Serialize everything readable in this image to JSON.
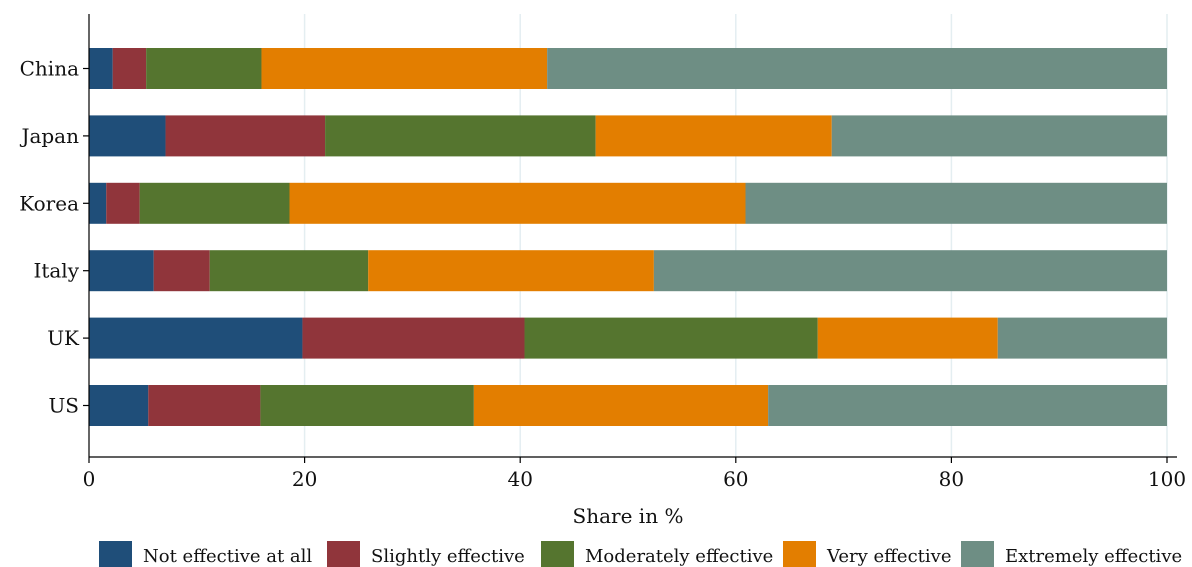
{
  "chart_data": {
    "type": "bar",
    "orientation": "horizontal",
    "stacked": true,
    "categories": [
      "China",
      "Japan",
      "Korea",
      "Italy",
      "UK",
      "US"
    ],
    "series": [
      {
        "name": "Not effective at all",
        "color": "#1f4e79",
        "values": [
          2.2,
          7.1,
          1.6,
          6.0,
          19.8,
          5.5
        ]
      },
      {
        "name": "Slightly effective",
        "color": "#90353b",
        "values": [
          3.1,
          14.8,
          3.1,
          5.2,
          20.6,
          10.4
        ]
      },
      {
        "name": "Moderately effective",
        "color": "#55752f",
        "values": [
          10.7,
          25.1,
          13.9,
          14.7,
          27.2,
          19.8
        ]
      },
      {
        "name": "Very effective",
        "color": "#e37e00",
        "values": [
          26.5,
          21.9,
          42.3,
          26.5,
          16.7,
          27.3
        ]
      },
      {
        "name": "Extremely effective",
        "color": "#6e8e84",
        "values": [
          57.5,
          31.1,
          39.1,
          47.6,
          15.7,
          37.0
        ]
      }
    ],
    "xlabel": "Share in %",
    "ylabel": "",
    "xlim": [
      0,
      100
    ],
    "xticks": [
      0,
      20,
      40,
      60,
      80,
      100
    ],
    "grid": true,
    "legend_position": "bottom"
  }
}
